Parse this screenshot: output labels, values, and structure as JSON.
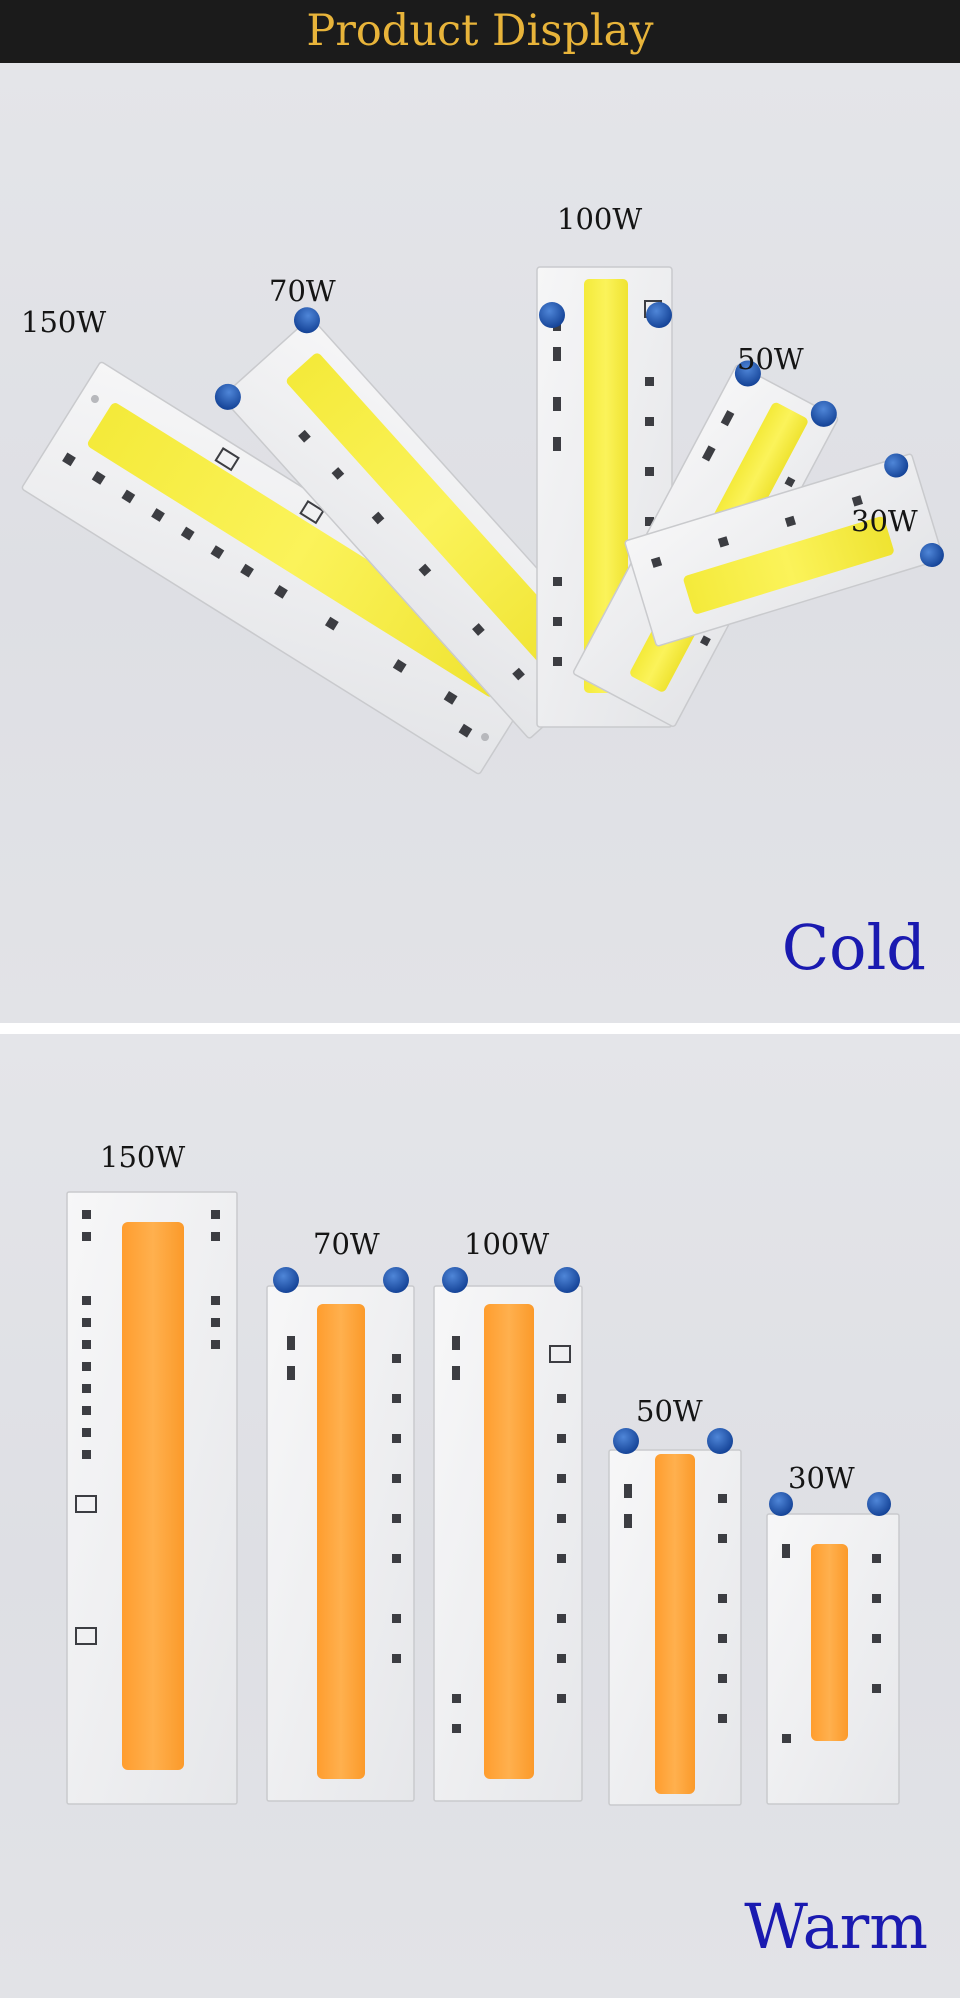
{
  "header": {
    "title": "Product Display",
    "title_color": "#e8b43a",
    "background": "#1b1b1b"
  },
  "cold": {
    "label": "Cold",
    "label_color": "#1a1ab0",
    "chip_color": "#f7ee4a",
    "modules": [
      {
        "watt": "150W"
      },
      {
        "watt": "70W"
      },
      {
        "watt": "100W"
      },
      {
        "watt": "50W"
      },
      {
        "watt": "30W"
      }
    ]
  },
  "warm": {
    "label": "Warm",
    "label_color": "#1a1ab0",
    "chip_color": "#ffa53c",
    "modules": [
      {
        "watt": "150W"
      },
      {
        "watt": "70W"
      },
      {
        "watt": "100W"
      },
      {
        "watt": "50W"
      },
      {
        "watt": "30W"
      }
    ]
  }
}
